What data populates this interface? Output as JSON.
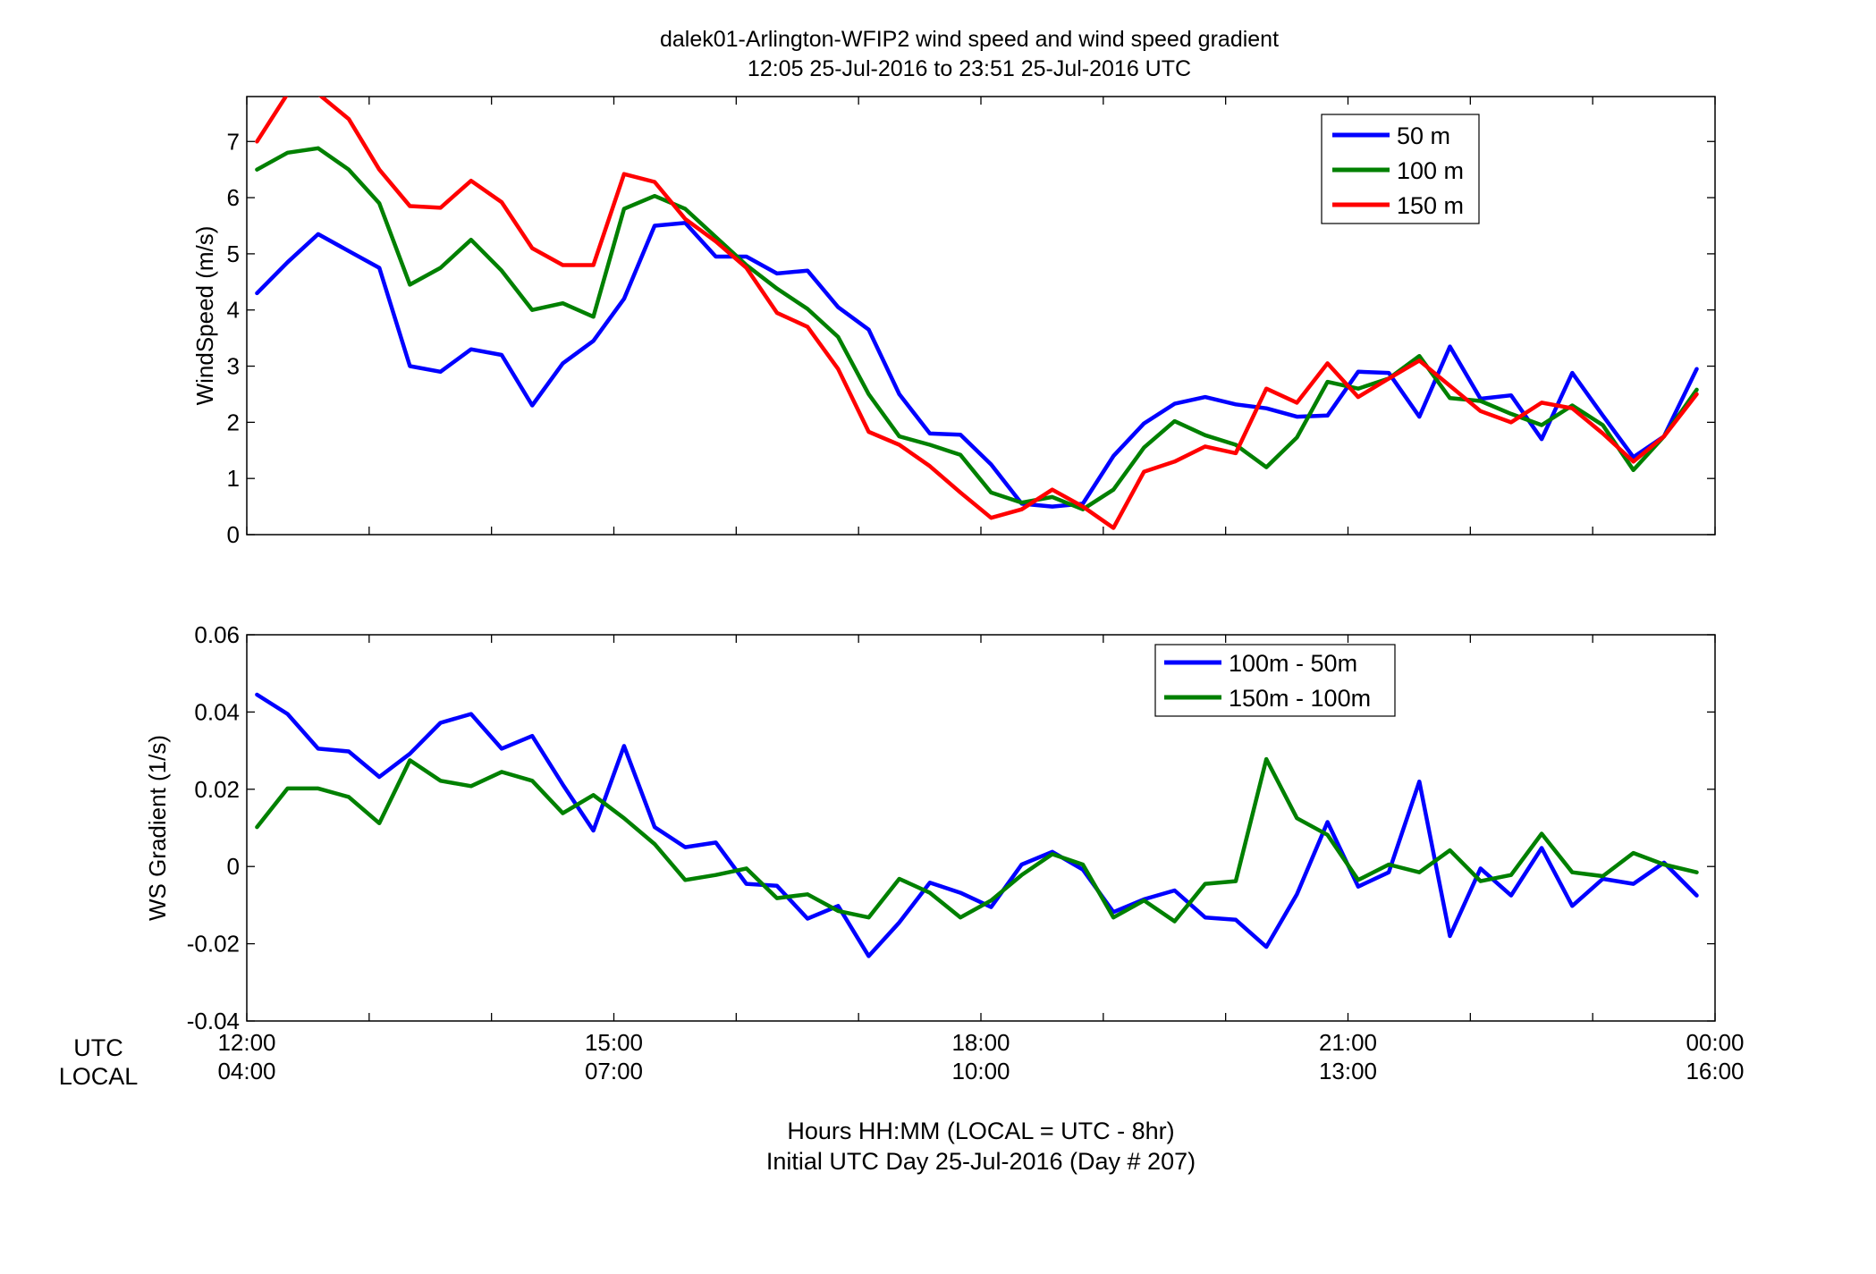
{
  "title": {
    "line1": "dalek01-Arlington-WFIP2  wind speed and wind speed gradient",
    "line2": "12:05 25-Jul-2016 to 23:51 25-Jul-2016  UTC"
  },
  "x_axis": {
    "utc_label": "UTC",
    "local_label": "LOCAL",
    "utc_ticks": [
      "12:00",
      "15:00",
      "18:00",
      "21:00",
      "00:00"
    ],
    "local_ticks": [
      "04:00",
      "07:00",
      "10:00",
      "13:00",
      "16:00"
    ],
    "tick_hours": [
      12,
      15,
      18,
      21,
      24
    ],
    "range_hours": [
      12,
      24
    ],
    "label_line1": "Hours HH:MM  (LOCAL = UTC - 8hr)",
    "label_line2": "Initial UTC Day 25-Jul-2016 (Day # 207)"
  },
  "chart_data": [
    {
      "type": "line",
      "ylabel": "WindSpeed (m/s)",
      "ylim": [
        0,
        7.8
      ],
      "yticks": [
        0,
        1,
        2,
        3,
        4,
        5,
        6,
        7
      ],
      "yticklabels": [
        "0",
        "1",
        "2",
        "3",
        "4",
        "5",
        "6",
        "7"
      ],
      "grid": false,
      "legend_position": "top-right",
      "x_hours": [
        12.083,
        12.333,
        12.583,
        12.833,
        13.083,
        13.333,
        13.583,
        13.833,
        14.083,
        14.333,
        14.583,
        14.833,
        15.083,
        15.333,
        15.583,
        15.833,
        16.083,
        16.333,
        16.583,
        16.833,
        17.083,
        17.333,
        17.583,
        17.833,
        18.083,
        18.333,
        18.583,
        18.833,
        19.083,
        19.333,
        19.583,
        19.833,
        20.083,
        20.333,
        20.583,
        20.833,
        21.083,
        21.333,
        21.583,
        21.833,
        22.083,
        22.333,
        22.583,
        22.833,
        23.083,
        23.333,
        23.583,
        23.85
      ],
      "series": [
        {
          "name": "50 m",
          "color": "#0000ff",
          "values": [
            4.3,
            4.85,
            5.35,
            5.05,
            4.75,
            3.0,
            2.9,
            3.3,
            3.2,
            2.3,
            3.05,
            3.45,
            4.2,
            5.5,
            5.55,
            4.95,
            4.95,
            4.65,
            4.7,
            4.05,
            3.65,
            2.5,
            1.8,
            1.78,
            1.25,
            0.55,
            0.5,
            0.55,
            1.4,
            1.98,
            2.33,
            2.45,
            2.32,
            2.25,
            2.1,
            2.12,
            2.9,
            2.88,
            2.1,
            3.35,
            2.42,
            2.48,
            1.7,
            2.88,
            2.12,
            1.38,
            1.75,
            2.95
          ]
        },
        {
          "name": "100 m",
          "color": "#008000",
          "values": [
            6.5,
            6.8,
            6.88,
            6.5,
            5.9,
            4.45,
            4.75,
            5.25,
            4.7,
            4.0,
            4.12,
            3.88,
            5.8,
            6.03,
            5.8,
            5.3,
            4.8,
            4.38,
            4.02,
            3.52,
            2.5,
            1.75,
            1.6,
            1.42,
            0.75,
            0.57,
            0.67,
            0.45,
            0.8,
            1.55,
            2.02,
            1.77,
            1.6,
            1.2,
            1.73,
            2.72,
            2.6,
            2.78,
            3.18,
            2.43,
            2.38,
            2.15,
            1.95,
            2.3,
            1.95,
            1.15,
            1.75,
            2.58
          ]
        },
        {
          "name": "150 m",
          "color": "#ff0000",
          "values": [
            7.0,
            7.85,
            7.85,
            7.4,
            6.5,
            5.85,
            5.82,
            6.3,
            5.92,
            5.1,
            4.8,
            4.8,
            6.42,
            6.28,
            5.62,
            5.22,
            4.75,
            3.95,
            3.7,
            2.95,
            1.83,
            1.6,
            1.22,
            0.75,
            0.3,
            0.45,
            0.8,
            0.5,
            0.12,
            1.12,
            1.3,
            1.57,
            1.45,
            2.6,
            2.35,
            3.05,
            2.45,
            2.78,
            3.1,
            2.65,
            2.2,
            2.0,
            2.35,
            2.25,
            1.8,
            1.3,
            1.75,
            2.5
          ]
        }
      ]
    },
    {
      "type": "line",
      "ylabel": "WS Gradient (1/s)",
      "ylim": [
        -0.04,
        0.06
      ],
      "yticks": [
        -0.04,
        -0.02,
        0,
        0.02,
        0.04,
        0.06
      ],
      "yticklabels": [
        "-0.04",
        "-0.02",
        "0",
        "0.02",
        "0.04",
        "0.06"
      ],
      "grid": false,
      "legend_position": "top-right",
      "x_hours": [
        12.083,
        12.333,
        12.583,
        12.833,
        13.083,
        13.333,
        13.583,
        13.833,
        14.083,
        14.333,
        14.583,
        14.833,
        15.083,
        15.333,
        15.583,
        15.833,
        16.083,
        16.333,
        16.583,
        16.833,
        17.083,
        17.333,
        17.583,
        17.833,
        18.083,
        18.333,
        18.583,
        18.833,
        19.083,
        19.333,
        19.583,
        19.833,
        20.083,
        20.333,
        20.583,
        20.833,
        21.083,
        21.333,
        21.583,
        21.833,
        22.083,
        22.333,
        22.583,
        22.833,
        23.083,
        23.333,
        23.583,
        23.85
      ],
      "series": [
        {
          "name": "100m - 50m",
          "color": "#0000ff",
          "values": [
            0.0445,
            0.0395,
            0.0305,
            0.0298,
            0.0232,
            0.0292,
            0.0372,
            0.0395,
            0.0305,
            0.0338,
            0.0212,
            0.0093,
            0.0312,
            0.0102,
            0.005,
            0.0062,
            -0.0045,
            -0.005,
            -0.0135,
            -0.0102,
            -0.0232,
            -0.0145,
            -0.0042,
            -0.0068,
            -0.0105,
            0.0005,
            0.0038,
            -0.0008,
            -0.0118,
            -0.0085,
            -0.0062,
            -0.0132,
            -0.0138,
            -0.0208,
            -0.0072,
            0.0115,
            -0.0052,
            -0.0015,
            0.022,
            -0.018,
            -0.0005,
            -0.0075,
            0.0048,
            -0.0102,
            -0.0032,
            -0.0045,
            0.001,
            -0.0075
          ]
        },
        {
          "name": "150m - 100m",
          "color": "#008000",
          "values": [
            0.0102,
            0.0202,
            0.0202,
            0.018,
            0.0112,
            0.0275,
            0.0222,
            0.0208,
            0.0245,
            0.0222,
            0.0138,
            0.0185,
            0.0125,
            0.0058,
            -0.0035,
            -0.0022,
            -0.0005,
            -0.0082,
            -0.0072,
            -0.0115,
            -0.0132,
            -0.0032,
            -0.0068,
            -0.0132,
            -0.0088,
            -0.0022,
            0.0032,
            0.0005,
            -0.0132,
            -0.0088,
            -0.0142,
            -0.0045,
            -0.0038,
            0.0278,
            0.0125,
            0.0082,
            -0.0035,
            0.0005,
            -0.0015,
            0.0042,
            -0.0038,
            -0.0022,
            0.0085,
            -0.0015,
            -0.0025,
            0.0035,
            0.0005,
            -0.0015
          ]
        }
      ]
    }
  ]
}
